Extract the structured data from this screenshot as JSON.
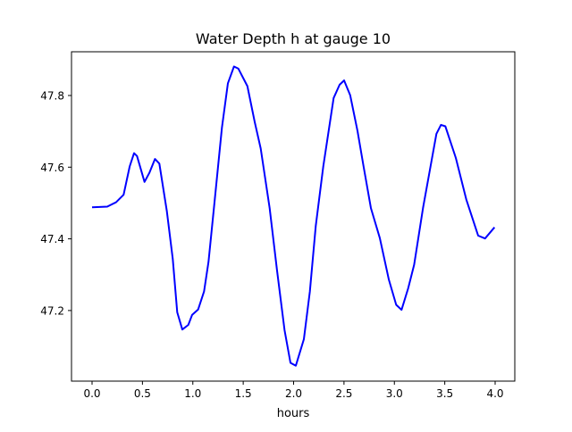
{
  "chart_data": {
    "type": "line",
    "title": "Water Depth h at gauge 10",
    "xlabel": "hours",
    "ylabel": "",
    "xlim": [
      -0.204,
      4.195
    ],
    "ylim": [
      47.003,
      47.922
    ],
    "xticks": [
      "0.0",
      "0.5",
      "1.0",
      "1.5",
      "2.0",
      "2.5",
      "3.0",
      "3.5",
      "4.0"
    ],
    "xtick_values": [
      0,
      0.5,
      1,
      1.5,
      2,
      2.5,
      3,
      3.5,
      4
    ],
    "yticks": [
      "47.2",
      "47.4",
      "47.6",
      "47.8"
    ],
    "ytick_values": [
      47.2,
      47.4,
      47.6,
      47.8
    ],
    "grid": false,
    "series": [
      {
        "name": "h",
        "color": "#0000ff",
        "x": [
          0,
          0.151,
          0.239,
          0.313,
          0.373,
          0.417,
          0.446,
          0.521,
          0.57,
          0.624,
          0.668,
          0.742,
          0.801,
          0.845,
          0.896,
          0.955,
          0.993,
          1.053,
          1.111,
          1.156,
          1.215,
          1.289,
          1.348,
          1.408,
          1.452,
          1.541,
          1.614,
          1.674,
          1.762,
          1.836,
          1.91,
          1.969,
          2.022,
          2.102,
          2.161,
          2.22,
          2.294,
          2.397,
          2.457,
          2.501,
          2.561,
          2.634,
          2.694,
          2.767,
          2.856,
          2.945,
          3.018,
          3.071,
          3.137,
          3.196,
          3.284,
          3.359,
          3.417,
          3.462,
          3.506,
          3.61,
          3.713,
          3.831,
          3.9,
          3.994
        ],
        "y": [
          47.488,
          47.49,
          47.502,
          47.523,
          47.602,
          47.639,
          47.631,
          47.559,
          47.585,
          47.623,
          47.61,
          47.477,
          47.344,
          47.195,
          47.147,
          47.16,
          47.188,
          47.203,
          47.253,
          47.336,
          47.502,
          47.71,
          47.834,
          47.881,
          47.875,
          47.826,
          47.726,
          47.652,
          47.486,
          47.311,
          47.145,
          47.054,
          47.046,
          47.12,
          47.253,
          47.436,
          47.602,
          47.793,
          47.83,
          47.842,
          47.801,
          47.701,
          47.602,
          47.486,
          47.402,
          47.286,
          47.216,
          47.202,
          47.262,
          47.328,
          47.486,
          47.602,
          47.693,
          47.718,
          47.714,
          47.626,
          47.51,
          47.409,
          47.401,
          47.432
        ]
      }
    ]
  }
}
